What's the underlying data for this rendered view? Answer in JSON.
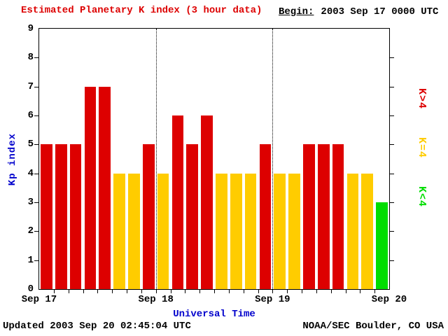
{
  "header": {
    "title": "Estimated Planetary K index (3 hour data)",
    "begin_label": "Begin:",
    "begin_value": "2003 Sep 17 0000 UTC"
  },
  "chart_data": {
    "type": "bar",
    "title": "Estimated Planetary K index (3 hour data)",
    "xlabel": "Universal Time",
    "ylabel": "Kp index",
    "ylim": [
      0,
      9
    ],
    "y_ticks": [
      0,
      1,
      2,
      3,
      4,
      5,
      6,
      7,
      8,
      9
    ],
    "hours_per_bar": 3,
    "x_day_labels": [
      "Sep 17",
      "Sep 18",
      "Sep 19",
      "Sep 20"
    ],
    "series": [
      {
        "name": "Sep 17",
        "values": [
          5,
          5,
          5,
          7,
          7,
          4,
          4,
          5
        ]
      },
      {
        "name": "Sep 18",
        "values": [
          4,
          6,
          5,
          6,
          4,
          4,
          4,
          5
        ]
      },
      {
        "name": "Sep 19",
        "values": [
          4,
          4,
          5,
          5,
          5,
          4,
          4,
          3
        ]
      }
    ],
    "color_rules": [
      {
        "condition": "K>4",
        "color": "#dd0000"
      },
      {
        "condition": "K=4",
        "color": "#ffcc00"
      },
      {
        "condition": "K<4",
        "color": "#00dd00"
      }
    ],
    "legend": [
      {
        "label": "K>4",
        "color": "#dd0000"
      },
      {
        "label": "K=4",
        "color": "#ffcc00"
      },
      {
        "label": "K<4",
        "color": "#00dd00"
      }
    ],
    "legend_position": "right",
    "grid": "vertical dotted lines at day boundaries only"
  },
  "footer": {
    "updated": "Updated 2003 Sep 20 02:45:04 UTC",
    "source": "NOAA/SEC Boulder, CO USA"
  },
  "colors": {
    "title_red": "#dd0000",
    "axis_label_blue": "#0000cc",
    "bar_red": "#dd0000",
    "bar_yellow": "#ffcc00",
    "bar_green": "#00dd00",
    "background": "#ffffff",
    "axis_black": "#000000"
  }
}
